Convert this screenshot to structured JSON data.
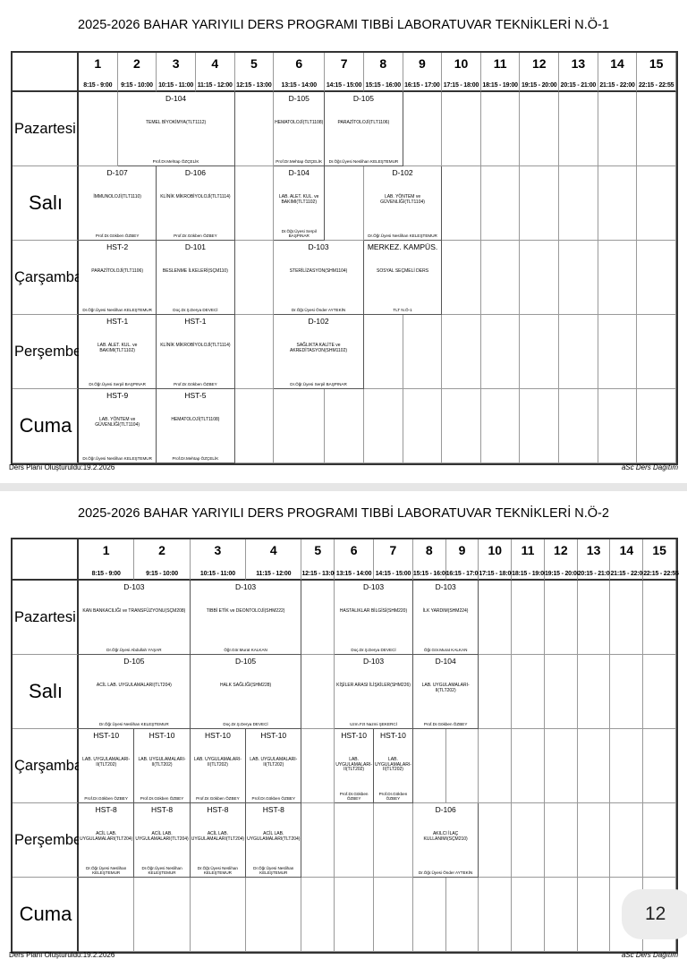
{
  "periods": [
    {
      "n": "1",
      "t": "8:15 - 9:00"
    },
    {
      "n": "2",
      "t": "9:15 - 10:00"
    },
    {
      "n": "3",
      "t": "10:15 - 11:00"
    },
    {
      "n": "4",
      "t": "11:15 - 12:00"
    },
    {
      "n": "5",
      "t": "12:15 - 13:00"
    },
    {
      "n": "6",
      "t": "13:15 - 14:00"
    },
    {
      "n": "7",
      "t": "14:15 - 15:00"
    },
    {
      "n": "8",
      "t": "15:15 - 16:00"
    },
    {
      "n": "9",
      "t": "16:15 - 17:00"
    },
    {
      "n": "10",
      "t": "17:15 - 18:00"
    },
    {
      "n": "11",
      "t": "18:15 - 19:00"
    },
    {
      "n": "12",
      "t": "19:15 - 20:00"
    },
    {
      "n": "13",
      "t": "20:15 - 21:00"
    },
    {
      "n": "14",
      "t": "21:15 - 22:00"
    },
    {
      "n": "15",
      "t": "22:15 - 22:55"
    }
  ],
  "days": [
    "Pazartesi",
    "Salı",
    "Çarşamba",
    "Perşembe",
    "Cuma"
  ],
  "footer": {
    "created": "Ders Planı Oluşturuldu:19.2.2026",
    "software": "aSc Ders Dağıtım"
  },
  "page_number": "12",
  "timetables": [
    {
      "title": "2025-2026 BAHAR YARIYILI DERS PROGRAMI TIBBİ LABORATUVAR TEKNİKLERİ N.Ö-1",
      "lessons": [
        {
          "day": 0,
          "start": 2,
          "span": 3,
          "room": "D-104",
          "course": "TEMEL BİYOKİMYA(TLT1112)",
          "teacher": "Prof.Dr.Mehtap ÖZÇELİK"
        },
        {
          "day": 0,
          "start": 6,
          "span": 1,
          "room": "D-105",
          "course": "HEMATOLOJİ(TLT1108)",
          "teacher": "Prof.Dr.Mehtap ÖZÇELİK"
        },
        {
          "day": 0,
          "start": 7,
          "span": 2,
          "room": "D-105",
          "course": "PARAZİTOLOJİ(TLT1106)",
          "teacher": "Dr.Öğr.Üyesi Neslihan KELEŞTEMUR"
        },
        {
          "day": 1,
          "start": 1,
          "span": 2,
          "room": "D-107",
          "course": "İMMUNOLOJİ(TLT1110)",
          "teacher": "Prof.Dr.Gökben ÖZBEY"
        },
        {
          "day": 1,
          "start": 3,
          "span": 2,
          "room": "D-106",
          "course": "KLİNİK MİKROBİYOLOJİ(TLT1114)",
          "teacher": "Prof.Dr.Gökben ÖZBEY"
        },
        {
          "day": 1,
          "start": 6,
          "span": 1,
          "room": "D-104",
          "course": "LAB. ALET. KUL. ve BAKIMI(TLT1102)",
          "teacher": "Dr.Öğr.Üyesi Serpil BAŞPINAR"
        },
        {
          "day": 1,
          "start": 8,
          "span": 2,
          "room": "D-102",
          "course": "LAB. YÖNTEM ve GÜVENLİĞİ(TLT1104)",
          "teacher": "Dr.Öğr.Üyesi Neslihan KELEŞTEMUR"
        },
        {
          "day": 2,
          "start": 1,
          "span": 2,
          "room": "HST-2",
          "course": "PARAZİTOLOJİ(TLT1106)",
          "teacher": "Dr.Öğr.Üyesi Neslihan KELEŞTEMUR"
        },
        {
          "day": 2,
          "start": 3,
          "span": 2,
          "room": "D-101",
          "course": "BESLENME İLKELERİ(SÇM110)",
          "teacher": "Doç.Dr.Ş.Derya DEVECİ"
        },
        {
          "day": 2,
          "start": 6,
          "span": 2,
          "room": "D-103",
          "course": "STERİLİZASYON(SHM1104)",
          "teacher": "Dr.Öğr.Üyesi Önder AYTEKİN"
        },
        {
          "day": 2,
          "start": 8,
          "span": 2,
          "room": "MERKEZ. KAMPÜS.",
          "course": "SOSYAL SEÇMELİ DERS",
          "teacher": "TLT N.Ö-1"
        },
        {
          "day": 3,
          "start": 1,
          "span": 2,
          "room": "HST-1",
          "course": "LAB. ALET. KUL. ve BAKIMI(TLT1102)",
          "teacher": "Dr.Öğr.Üyesi Serpil BAŞPINAR"
        },
        {
          "day": 3,
          "start": 3,
          "span": 2,
          "room": "HST-1",
          "course": "KLİNİK MİKROBİYOLOJİ(TLT1114)",
          "teacher": "Prof.Dr.Gökben ÖZBEY"
        },
        {
          "day": 3,
          "start": 6,
          "span": 2,
          "room": "D-102",
          "course": "SAĞLIKTA KALİTE ve AKREDİTASYON(SHM1102)",
          "teacher": "Dr.Öğr.Üyesi Serpil BAŞPINAR"
        },
        {
          "day": 4,
          "start": 1,
          "span": 2,
          "room": "HST-9",
          "course": "LAB. YÖNTEM ve GÜVENLİĞİ(TLT1104)",
          "teacher": "Dr.Öğr.Üyesi Neslihan KELEŞTEMUR"
        },
        {
          "day": 4,
          "start": 3,
          "span": 2,
          "room": "HST-5",
          "course": "HEMATOLOJİ(TLT1108)",
          "teacher": "Prof.Dr.Mehtap ÖZÇELİK"
        }
      ]
    },
    {
      "title": "2025-2026 BAHAR YARIYILI DERS PROGRAMI TIBBİ LABORATUVAR TEKNİKLERİ N.Ö-2",
      "lessons": [
        {
          "day": 0,
          "start": 1,
          "span": 2,
          "room": "D-103",
          "course": "KAN BANKACILIĞI ve TRANSFÜZYONU(SÇM208)",
          "teacher": "Dr.Öğr.Üyesi Abdullah YAŞAR"
        },
        {
          "day": 0,
          "start": 3,
          "span": 2,
          "room": "D-103",
          "course": "TIBBİ ETİK ve DEONTOLOJİ(SHM222)",
          "teacher": "Öğr.Gör.Murat KALKAN"
        },
        {
          "day": 0,
          "start": 6,
          "span": 2,
          "room": "D-103",
          "course": "HASTALIKLAR BİLGİSİ(SHM220)",
          "teacher": "Doç.Dr.Ş.Derya DEVECİ"
        },
        {
          "day": 0,
          "start": 8,
          "span": 2,
          "room": "D-103",
          "course": "İLK YARDIM(SHM224)",
          "teacher": "Öğr.Gör.Murat KALKAN"
        },
        {
          "day": 1,
          "start": 1,
          "span": 2,
          "room": "D-105",
          "course": "ACİL LAB. UYGULAMALARI(TLT204)",
          "teacher": "Dr.Öğr.Üyesi Neslihan KELEŞTEMUR"
        },
        {
          "day": 1,
          "start": 3,
          "span": 2,
          "room": "D-105",
          "course": "HALK SAĞLIĞI(SHM228)",
          "teacher": "Doç.Dr.Ş.Derya DEVECİ"
        },
        {
          "day": 1,
          "start": 6,
          "span": 2,
          "room": "D-103",
          "course": "KİŞİLER ARASI İLİŞKİLER(SHM226)",
          "teacher": "Uzm.Fzt Nazmi ŞEKERCİ"
        },
        {
          "day": 1,
          "start": 8,
          "span": 2,
          "room": "D-104",
          "course": "LAB. UYGULAMALARI-II(TLT202)",
          "teacher": "Prof.Dr.Gökben ÖZBEY"
        },
        {
          "day": 2,
          "start": 1,
          "span": 1,
          "room": "HST-10",
          "course": "LAB. UYGULAMALARI-II(TLT202)",
          "teacher": "Prof.Dr.Gökben ÖZBEY"
        },
        {
          "day": 2,
          "start": 2,
          "span": 1,
          "room": "HST-10",
          "course": "LAB. UYGULAMALARI-II(TLT202)",
          "teacher": "Prof.Dr.Gökben ÖZBEY"
        },
        {
          "day": 2,
          "start": 3,
          "span": 1,
          "room": "HST-10",
          "course": "LAB. UYGULAMALARI-II(TLT202)",
          "teacher": "Prof.Dr.Gökben ÖZBEY"
        },
        {
          "day": 2,
          "start": 4,
          "span": 1,
          "room": "HST-10",
          "course": "LAB. UYGULAMALARI-II(TLT202)",
          "teacher": "Prof.Dr.Gökben ÖZBEY"
        },
        {
          "day": 2,
          "start": 6,
          "span": 1,
          "room": "HST-10",
          "course": "LAB. UYGULAMALARI-II(TLT202)",
          "teacher": "Prof.Dr.Gökben ÖZBEY"
        },
        {
          "day": 2,
          "start": 7,
          "span": 1,
          "room": "HST-10",
          "course": "LAB. UYGULAMALARI-II(TLT202)",
          "teacher": "Prof.Dr.Gökben ÖZBEY"
        },
        {
          "day": 3,
          "start": 1,
          "span": 1,
          "room": "HST-8",
          "course": "ACİL LAB. UYGULAMALARI(TLT204)",
          "teacher": "Dr.Öğr.Üyesi Neslihan KELEŞTEMUR"
        },
        {
          "day": 3,
          "start": 2,
          "span": 1,
          "room": "HST-8",
          "course": "ACİL LAB. UYGULAMALARI(TLT204)",
          "teacher": "Dr.Öğr.Üyesi Neslihan KELEŞTEMUR"
        },
        {
          "day": 3,
          "start": 3,
          "span": 1,
          "room": "HST-8",
          "course": "ACİL LAB. UYGULAMALARI(TLT204)",
          "teacher": "Dr.Öğr.Üyesi Neslihan KELEŞTEMUR"
        },
        {
          "day": 3,
          "start": 4,
          "span": 1,
          "room": "HST-8",
          "course": "ACİL LAB. UYGULAMALARI(TLT204)",
          "teacher": "Dr.Öğr.Üyesi Neslihan KELEŞTEMUR"
        },
        {
          "day": 3,
          "start": 8,
          "span": 2,
          "room": "D-106",
          "course": "AKILCI İLAÇ KULLANIMI(SÇM210)",
          "teacher": "Dr.Öğr.Üyesi Önder AYTEKİN"
        }
      ]
    }
  ]
}
